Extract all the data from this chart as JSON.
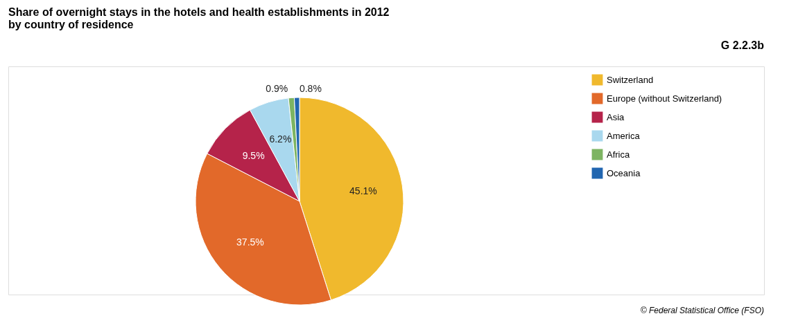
{
  "chart_data": {
    "type": "pie",
    "title": [
      "Share of overnight stays in the hotels and health establishments in 2012",
      "by country of residence"
    ],
    "categories": [
      "Switzerland",
      "Europe (without Switzerland)",
      "Asia",
      "America",
      "Africa",
      "Oceania"
    ],
    "values": [
      45.1,
      37.5,
      9.5,
      6.2,
      0.9,
      0.8
    ],
    "colors": [
      "#f0b92d",
      "#e2692a",
      "#b5234a",
      "#a9d8ee",
      "#7db462",
      "#2166b0"
    ],
    "value_labels": [
      "45.1%",
      "37.5%",
      "9.5%",
      "6.2%",
      "0.9%",
      "0.8%"
    ],
    "legend": "right",
    "annotations": [
      "G 2.2.3b",
      "© Federal Statistical Office (FSO)"
    ]
  }
}
